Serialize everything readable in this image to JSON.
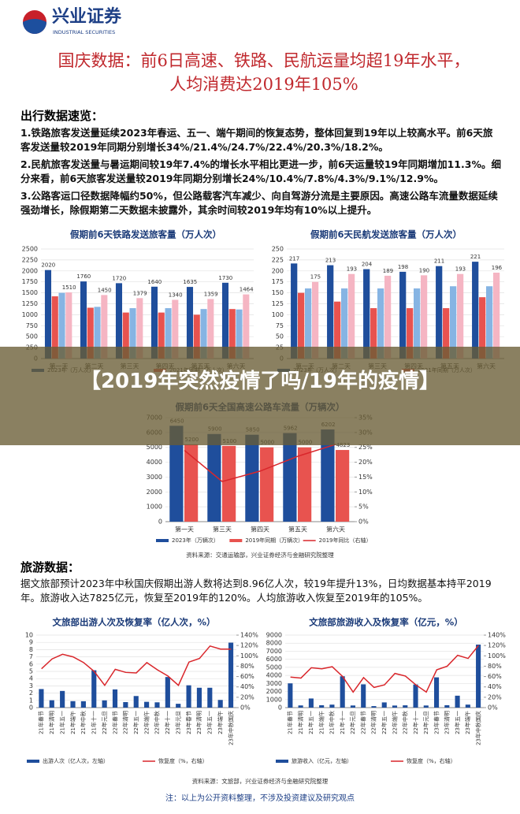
{
  "header": {
    "brand": "兴业证券",
    "brand_en": "INDUSTRIAL SECURITIES"
  },
  "title": [
    "国庆数据：前6日高速、铁路、民航运量均超19年水平，",
    "人均消费达2019年105%"
  ],
  "travel_section": {
    "heading": "出行数据速览：",
    "paragraphs": [
      "1.铁路旅客发送量延续2023年春运、五一、端午期间的恢复态势，整体回复到19年以上较高水平。前6天旅客发送量较2019年同期分别增长34%/21.4%/24.7%/22.4%/20.3%/18.2%。",
      "2.民航旅客发送量与暑运期间较19年7.4%的增长水平相比更进一步，前6天运量较19年同期增加11.3%。细分来看，前6天旅客发送量较2019年同期分别增长24%/10.4%/7.8%/4.3%/9.1%/12.9%。",
      "3.公路客运口径数据降幅约50%，但公路载客汽车减少、向自驾游分流是主要原因。高速公路车流量数据延续强劲增长，除假期第二天数据未披露外，其余时间较2019年均有10%以上提升。"
    ],
    "source": "资料来源：交通运输部，兴业证券经济与金融研究院整理"
  },
  "banner": "【2019年突然疫情了吗/19年的疫情】",
  "charts": [
    {
      "type": "bar",
      "title": "假期前6天铁路发送旅客量（万人次）",
      "categories": [
        "第一天",
        "第二天",
        "第三天",
        "第四天",
        "第五天",
        "第六天"
      ],
      "series": [
        {
          "name": "2023年（万人次）",
          "color": "#1f4e9c",
          "values": [
            2020,
            1760,
            1720,
            1640,
            1635,
            1730
          ],
          "show_labels": true
        },
        {
          "name": "2021年同期（万人次）",
          "color": "#e8534f",
          "values": [
            1420,
            1160,
            1050,
            1050,
            1000,
            1130
          ]
        },
        {
          "color": "#86b4e3",
          "values": [
            1500,
            1180,
            1150,
            1150,
            1130,
            1120
          ]
        },
        {
          "color": "#f5b5c3",
          "values": [
            1510,
            1450,
            1379,
            1340,
            1359,
            1464
          ],
          "show_labels": true
        }
      ],
      "ylim": [
        0,
        2500
      ],
      "yticks": [
        0,
        250,
        500,
        750,
        1000,
        1250,
        1500,
        1750,
        2000,
        2250,
        2500
      ]
    },
    {
      "type": "bar",
      "title": "假期前6天民航发送旅客量（万人次）",
      "categories": [
        "第一天",
        "第二天",
        "第三天",
        "第四天",
        "第五天",
        "第六天"
      ],
      "series": [
        {
          "name": "2023年（万人次）",
          "color": "#1f4e9c",
          "values": [
            217,
            213,
            204,
            198,
            211,
            221
          ],
          "show_labels": true
        },
        {
          "name": "2021年同期（万人次）",
          "color": "#e8534f",
          "values": [
            150,
            130,
            115,
            115,
            115,
            140
          ]
        },
        {
          "color": "#86b4e3",
          "values": [
            160,
            160,
            160,
            160,
            165,
            165
          ]
        },
        {
          "color": "#f5b5c3",
          "values": [
            175,
            193,
            189,
            190,
            193,
            196
          ],
          "show_labels": true
        }
      ],
      "ylim": [
        0,
        250
      ],
      "yticks": [
        0,
        25,
        50,
        75,
        100,
        125,
        150,
        175,
        200,
        225,
        250
      ]
    },
    {
      "type": "bar",
      "title": "假期前6天全国高速公路车流量（万辆次）",
      "categories": [
        "第一天",
        "第三天",
        "第四天",
        "第五天",
        "第六天"
      ],
      "series": [
        {
          "name": "2023年（万辆次）",
          "color": "#1f4e9c",
          "values": [
            6450,
            5900,
            5850,
            5962,
            6202
          ],
          "show_labels": true
        },
        {
          "name": "2019年同期（万辆次）",
          "color": "#e8534f",
          "values": [
            5200,
            5100,
            5000,
            5000,
            4823
          ],
          "show_labels": true
        },
        {
          "name": "2019年同比（右轴）",
          "color": "#d9262b",
          "type": "line",
          "axis": "y2",
          "values": [
            24,
            13.5,
            17,
            22,
            26
          ]
        }
      ],
      "ylim": [
        0,
        7000
      ],
      "yticks": [
        0,
        1000,
        2000,
        3000,
        4000,
        5000,
        6000,
        7000
      ],
      "y2lim": [
        0,
        35
      ],
      "y2ticks": [
        {
          "value": 0,
          "label": "0%"
        },
        {
          "value": 5,
          "label": "5%"
        },
        {
          "value": 10,
          "label": "10%"
        },
        {
          "value": 15,
          "label": "15%"
        },
        {
          "value": 20,
          "label": "20%"
        },
        {
          "value": 25,
          "label": "25%"
        },
        {
          "value": 30,
          "label": "30%"
        },
        {
          "value": 35,
          "label": "35%"
        }
      ]
    },
    {
      "type": "bar",
      "title": "文旅部出游人次及恢复率（亿人次，%）",
      "rotate_labels": true,
      "categories": [
        "21年春节",
        "21年清明",
        "21年五一",
        "21年端午",
        "21年中秋",
        "21年十一",
        "22年元旦",
        "22年春节",
        "22年清明",
        "22年五一",
        "22年端午",
        "22年中秋",
        "22年十一",
        "23年元旦",
        "23年春节",
        "23年清明",
        "23年五一",
        "23年端午",
        "23年中秋国庆"
      ],
      "series": [
        {
          "name": "出游人次（亿人次，左轴）",
          "color": "#1f4e9c",
          "values": [
            2.56,
            1.02,
            2.3,
            0.89,
            0.88,
            5.15,
            1.0,
            2.51,
            0.76,
            1.6,
            0.8,
            0.73,
            4.22,
            0.53,
            3.08,
            2.74,
            2.74,
            1.06,
            8.96
          ]
        },
        {
          "name": "恢复度（%，右轴）",
          "color": "#d9262b",
          "type": "line",
          "axis": "y2",
          "values": [
            75,
            94,
            103,
            98,
            87,
            70,
            43,
            74,
            68,
            67,
            87,
            73,
            61,
            43,
            88,
            95,
            119,
            113,
            113
          ]
        }
      ],
      "ylim": [
        0,
        10
      ],
      "yticks": [
        0,
        1,
        2,
        3,
        4,
        5,
        6,
        7,
        8,
        9,
        10
      ],
      "y2lim": [
        0,
        140
      ],
      "y2ticks": [
        {
          "value": 0,
          "label": "0%"
        },
        {
          "value": 20,
          "label": "20%"
        },
        {
          "value": 40,
          "label": "40%"
        },
        {
          "value": 60,
          "label": "60%"
        },
        {
          "value": 80,
          "label": "80%"
        },
        {
          "value": 100,
          "label": "100%"
        },
        {
          "value": 120,
          "label": "120%"
        },
        {
          "value": 140,
          "label": "140%"
        }
      ]
    },
    {
      "type": "bar",
      "title": "文旅部旅游收入及恢复率（亿元，%）",
      "rotate_labels": true,
      "categories": [
        "21年春节",
        "21年清明",
        "21年五一",
        "21年端午",
        "21年中秋",
        "21年十一",
        "22年元旦",
        "22年春节",
        "22年清明",
        "22年五一",
        "22年端午",
        "22年中秋",
        "22年十一",
        "23年元旦",
        "23年春节",
        "23年清明",
        "23年五一",
        "23年端午",
        "23年中秋国庆"
      ],
      "series": [
        {
          "name": "旅游收入（亿元，左轴）",
          "color": "#1f4e9c",
          "values": [
            3011,
            272,
            1133,
            294,
            371,
            3891,
            266,
            2892,
            188,
            647,
            259,
            287,
            2872,
            265,
            3758,
            300,
            1481,
            373,
            7825
          ]
        },
        {
          "name": "恢复度（%，右轴）",
          "color": "#d9262b",
          "type": "line",
          "axis": "y2",
          "values": [
            59,
            57,
            77,
            75,
            79,
            60,
            30,
            58,
            39,
            44,
            66,
            61,
            44,
            30,
            73,
            80,
            101,
            95,
            120
          ]
        }
      ],
      "ylim": [
        0,
        9000
      ],
      "yticks": [
        0,
        1000,
        2000,
        3000,
        4000,
        5000,
        6000,
        7000,
        8000,
        9000
      ],
      "y2lim": [
        0,
        140
      ],
      "y2ticks": [
        {
          "value": 0,
          "label": "0%"
        },
        {
          "value": 20,
          "label": "20%"
        },
        {
          "value": 40,
          "label": "40%"
        },
        {
          "value": 60,
          "label": "60%"
        },
        {
          "value": 80,
          "label": "80%"
        },
        {
          "value": 100,
          "label": "100%"
        },
        {
          "value": 120,
          "label": "120%"
        },
        {
          "value": 140,
          "label": "140%"
        }
      ]
    }
  ],
  "tourism_section": {
    "heading": "旅游数据：",
    "paragraph": "据文旅部预计2023年中秋国庆假期出游人数将达到8.96亿人次，较19年提升13%，日均数据基本持平2019年。旅游收入达7825亿元，恢复至2019年的120%。人均旅游收入恢复至2019年的105%。",
    "source": "资料来源：文旅部，兴业证券经济与金融研究院整理"
  },
  "footnote": "注：以上为公开资料整理，不涉及投资建议及研究观点"
}
